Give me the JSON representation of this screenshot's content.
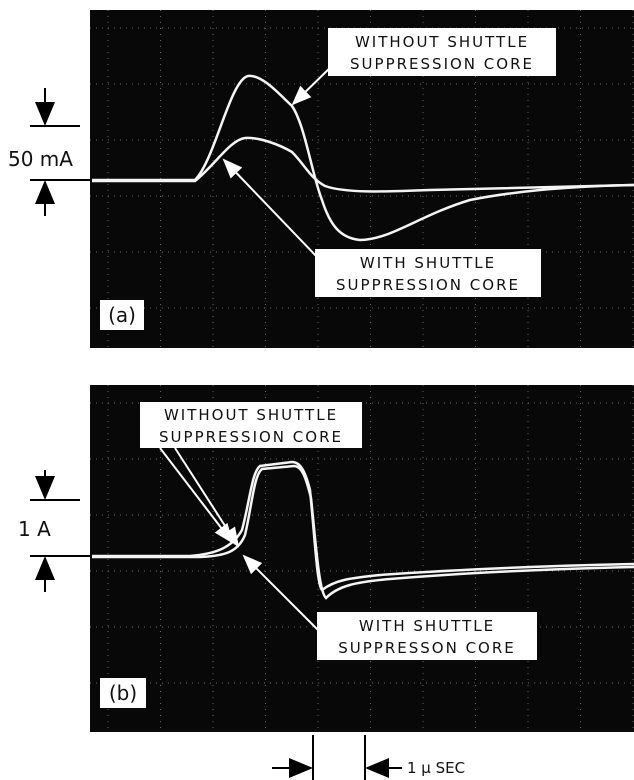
{
  "panels": [
    {
      "label": "(a)",
      "scale": "50 mA",
      "annotations": [
        {
          "lines": [
            "WITHOUT SHUTTLE",
            "SUPPRESSION CORE"
          ]
        },
        {
          "lines": [
            "WITH SHUTTLE",
            "SUPPRESSION CORE"
          ]
        }
      ]
    },
    {
      "label": "(b)",
      "scale": "1 A",
      "annotations": [
        {
          "lines": [
            "WITHOUT SHUTTLE",
            "SUPPRESSION CORE"
          ]
        },
        {
          "lines": [
            "WITH SHUTTLE",
            "SUPPRESSON CORE"
          ]
        }
      ]
    }
  ],
  "time_scale": "1 μ SEC"
}
